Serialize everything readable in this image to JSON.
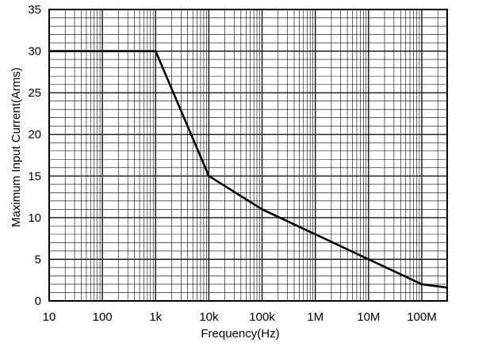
{
  "chart_data": {
    "type": "line",
    "title": "",
    "xlabel": "Frequency(Hz)",
    "ylabel": "Maximum  Input Current(Arms)",
    "x_scale": "log",
    "xlim": [
      10,
      300000000
    ],
    "ylim": [
      0,
      35
    ],
    "grid": true,
    "x_ticks": [
      {
        "value": 10,
        "label": "10"
      },
      {
        "value": 100,
        "label": "100"
      },
      {
        "value": 1000,
        "label": "1k"
      },
      {
        "value": 10000,
        "label": "10k"
      },
      {
        "value": 100000,
        "label": "100k"
      },
      {
        "value": 1000000,
        "label": "1M"
      },
      {
        "value": 10000000,
        "label": "10M"
      },
      {
        "value": 100000000,
        "label": "100M"
      }
    ],
    "y_ticks": [
      0,
      5,
      10,
      15,
      20,
      25,
      30,
      35
    ],
    "series": [
      {
        "x": [
          10,
          1000,
          10000,
          100000,
          1000000,
          10000000,
          100000000,
          300000000
        ],
        "y": [
          30,
          30,
          15,
          11,
          8,
          5,
          2,
          1.6
        ]
      }
    ]
  }
}
